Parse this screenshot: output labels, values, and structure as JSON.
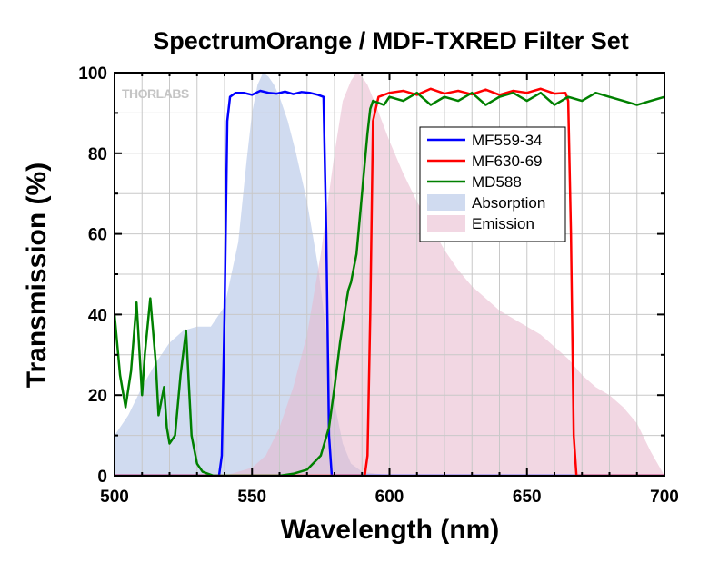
{
  "chart_data": {
    "type": "line",
    "title": "SpectrumOrange / MDF-TXRED Filter Set",
    "xlabel": "Wavelength (nm)",
    "ylabel": "Transmission (%)",
    "xlim": [
      500,
      700
    ],
    "ylim": [
      0,
      100
    ],
    "x_ticks": [
      500,
      550,
      600,
      650,
      700
    ],
    "y_ticks": [
      0,
      20,
      40,
      60,
      80,
      100
    ],
    "grid": true,
    "legend_position": "top-right",
    "watermark": "THORLABS",
    "series": [
      {
        "name": "MF559-34",
        "kind": "line",
        "color": "#0000ff",
        "x": [
          500,
          538,
          539,
          540,
          541,
          542,
          544,
          547,
          550,
          553,
          556,
          559,
          562,
          565,
          568,
          571,
          574,
          576,
          577,
          578,
          579,
          600,
          700
        ],
        "y": [
          0,
          0,
          5,
          40,
          88,
          94,
          95,
          95,
          94.5,
          95.5,
          95,
          94.8,
          95.3,
          94.7,
          95.2,
          95,
          94.5,
          94,
          60,
          10,
          0,
          0,
          0
        ]
      },
      {
        "name": "MF630-69",
        "kind": "line",
        "color": "#ff0000",
        "x": [
          500,
          591,
          592,
          593,
          594,
          596,
          600,
          605,
          610,
          615,
          620,
          625,
          630,
          635,
          640,
          645,
          650,
          655,
          660,
          664,
          665,
          666,
          667,
          668,
          700
        ],
        "y": [
          0,
          0,
          5,
          40,
          88,
          94,
          95,
          95.5,
          94.5,
          96,
          94.8,
          95.5,
          94.6,
          95.8,
          94.5,
          95.5,
          95,
          96,
          94.8,
          95,
          93,
          60,
          10,
          0,
          0
        ]
      },
      {
        "name": "MD588",
        "kind": "line",
        "color": "#008000",
        "x": [
          500,
          502,
          504,
          506,
          508,
          510,
          511,
          513,
          515,
          516,
          518,
          519,
          520,
          522,
          524,
          526,
          528,
          530,
          532,
          534,
          536,
          538,
          540,
          545,
          550,
          555,
          560,
          565,
          570,
          575,
          578,
          580,
          582,
          584,
          585,
          586,
          588,
          590,
          592,
          593,
          594,
          598,
          600,
          605,
          610,
          615,
          620,
          625,
          630,
          635,
          640,
          645,
          650,
          655,
          660,
          665,
          670,
          675,
          680,
          685,
          690,
          695,
          700
        ],
        "y": [
          40,
          25,
          17,
          26,
          43,
          20,
          30,
          44,
          28,
          15,
          22,
          12,
          8,
          10,
          25,
          36,
          10,
          3,
          1,
          0.5,
          0,
          0,
          0,
          0,
          0,
          0,
          0,
          0.5,
          1.5,
          5,
          12,
          22,
          33,
          42,
          46,
          48,
          55,
          70,
          85,
          91,
          93,
          92,
          94,
          93,
          95,
          92,
          94,
          93,
          95,
          92,
          94,
          95,
          93,
          95,
          92,
          94,
          93,
          95,
          94,
          93,
          92,
          93,
          94
        ]
      },
      {
        "name": "Absorption",
        "kind": "area",
        "color": "#a9bde4",
        "x": [
          500,
          505,
          510,
          515,
          520,
          525,
          530,
          535,
          540,
          545,
          548,
          550,
          552,
          554,
          556,
          558,
          560,
          563,
          566,
          570,
          574,
          578,
          580,
          583,
          586,
          590,
          595,
          600,
          605,
          610
        ],
        "y": [
          10,
          15,
          22,
          28,
          33,
          36,
          37,
          37,
          42,
          58,
          78,
          90,
          97,
          100,
          99,
          97,
          94,
          88,
          80,
          68,
          52,
          30,
          18,
          8,
          3,
          1,
          0.5,
          0.2,
          0,
          0
        ]
      },
      {
        "name": "Emission",
        "kind": "area",
        "color": "#e7b6cc",
        "x": [
          540,
          550,
          555,
          560,
          565,
          570,
          575,
          580,
          583,
          586,
          588,
          590,
          592,
          595,
          600,
          605,
          610,
          615,
          620,
          625,
          630,
          635,
          640,
          645,
          650,
          655,
          660,
          665,
          670,
          675,
          680,
          685,
          690,
          695,
          700
        ],
        "y": [
          0,
          2,
          5,
          12,
          22,
          35,
          55,
          80,
          93,
          98,
          100,
          99,
          97,
          92,
          83,
          75,
          68,
          62,
          56,
          51,
          47,
          44,
          41,
          39,
          37,
          35,
          32,
          29,
          25,
          22,
          20,
          17,
          13,
          6,
          0
        ]
      }
    ]
  }
}
